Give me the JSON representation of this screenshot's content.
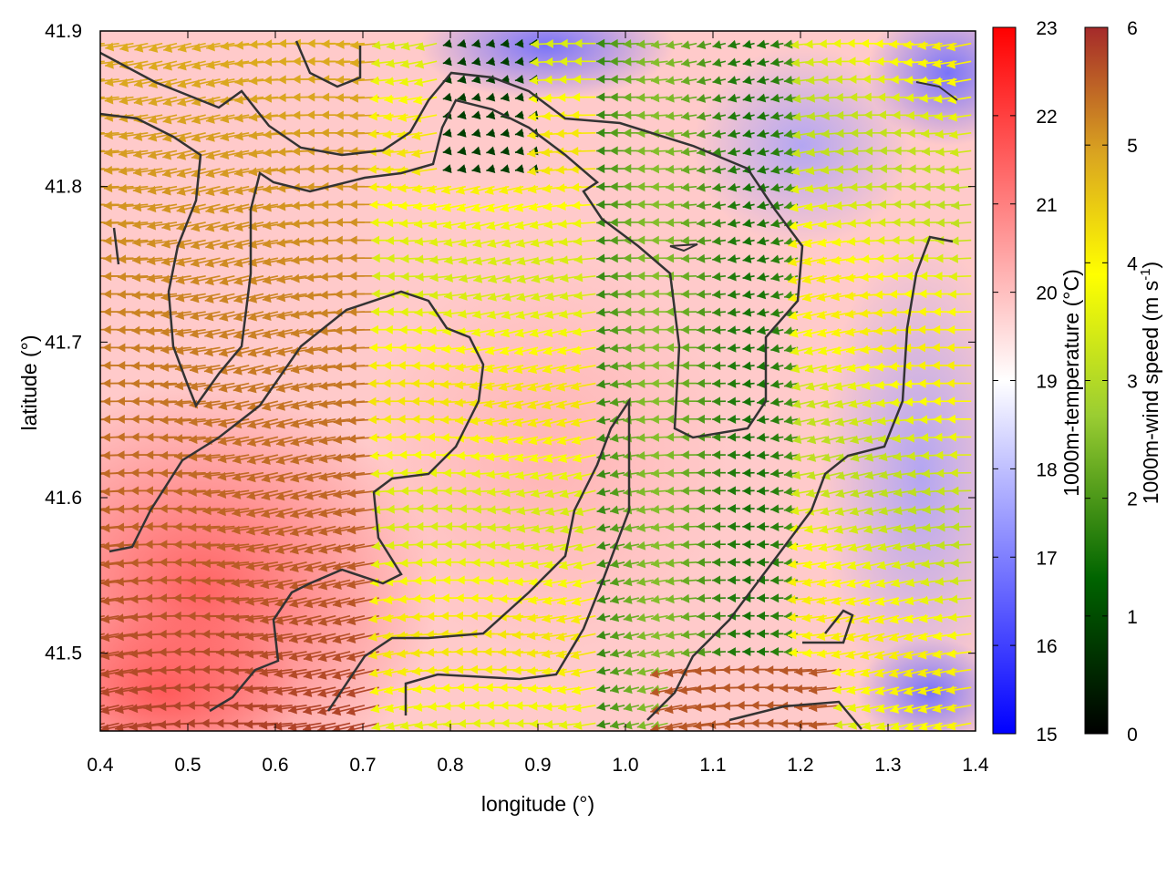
{
  "chart_data": {
    "type": "heatmap",
    "title": "",
    "xlabel": "longitude (°)",
    "ylabel": "latitude (°)",
    "xlim": [
      0.4,
      1.4
    ],
    "ylim": [
      41.45,
      41.9
    ],
    "xticks": [
      "0.4",
      "0.5",
      "0.6",
      "0.7",
      "0.8",
      "0.9",
      "1.0",
      "1.1",
      "1.2",
      "1.3",
      "1.4"
    ],
    "yticks": [
      "41.5",
      "41.6",
      "41.7",
      "41.8",
      "41.9"
    ],
    "grid": false,
    "overlays": [
      "wind vectors colored by speed",
      "coastline contour"
    ],
    "temperature_colorbar": {
      "label": "1000m-temperature (°C)",
      "range": [
        15,
        23
      ],
      "ticks": [
        "15",
        "16",
        "17",
        "18",
        "19",
        "20",
        "21",
        "22",
        "23"
      ],
      "colors": [
        "#0000ff",
        "#ffffff",
        "#ff0000"
      ]
    },
    "wind_colorbar": {
      "label": "1000m-wind speed (m s-1)",
      "label_main": "1000m-wind speed (m s",
      "label_sup": "-1",
      "label_close": ")",
      "range": [
        0,
        6
      ],
      "ticks": [
        "0",
        "1",
        "2",
        "3",
        "4",
        "5",
        "6"
      ],
      "colors": [
        "#000000",
        "#006400",
        "#9acd32",
        "#ffff00",
        "#daa520",
        "#a52a2a"
      ]
    },
    "temperature_regions": [
      {
        "name": "warm-southwest",
        "lon": [
          0.4,
          0.72
        ],
        "lat": [
          41.45,
          41.68
        ],
        "temperature": 22.5
      },
      {
        "name": "warm-interior",
        "lon": [
          0.7,
          1.0
        ],
        "lat": [
          41.5,
          41.8
        ],
        "temperature": 21
      },
      {
        "name": "cool-northeast",
        "lon": [
          1.1,
          1.4
        ],
        "lat": [
          41.55,
          41.9
        ],
        "temperature": 17.5
      },
      {
        "name": "cool-north",
        "lon": [
          0.8,
          1.0
        ],
        "lat": [
          41.85,
          41.9
        ],
        "temperature": 16
      }
    ],
    "wind_regions": [
      {
        "name": "strong-southwest",
        "lon": [
          0.4,
          0.72
        ],
        "lat": [
          41.45,
          41.85
        ],
        "speed": 5.8
      },
      {
        "name": "moderate-central",
        "lon": [
          0.72,
          0.95
        ],
        "lat": [
          41.45,
          41.75
        ],
        "speed": 4
      },
      {
        "name": "weak-east",
        "lon": [
          0.95,
          1.2
        ],
        "lat": [
          41.5,
          41.8
        ],
        "speed": 2
      },
      {
        "name": "moderate-northeast",
        "lon": [
          1.2,
          1.4
        ],
        "lat": [
          41.5,
          41.9
        ],
        "speed": 3.8
      }
    ]
  }
}
